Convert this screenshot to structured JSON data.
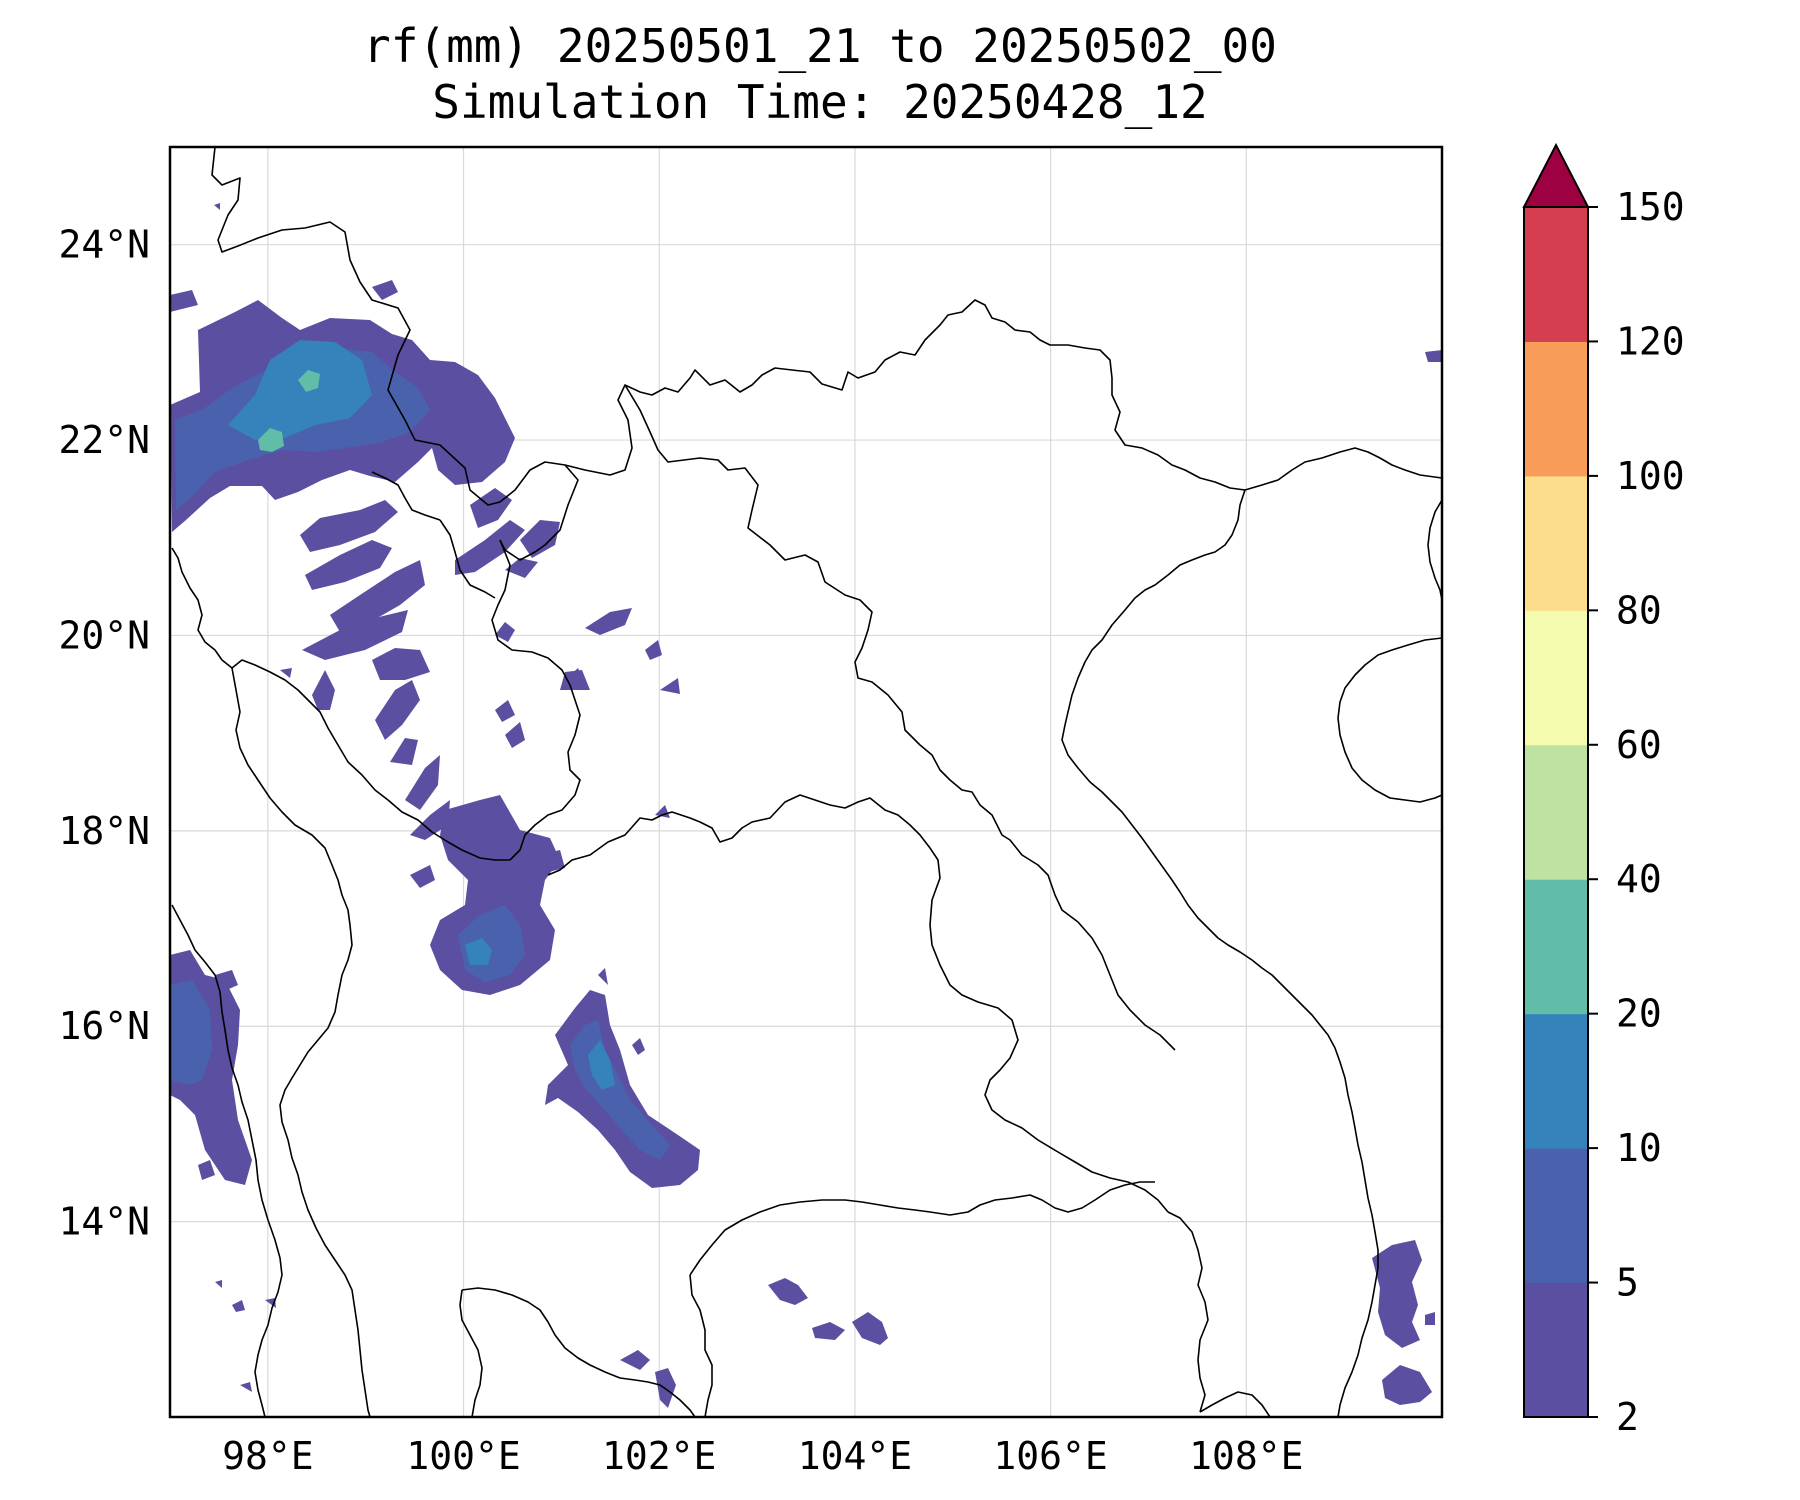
{
  "title": "rf(mm) 20250501_21 to 20250502_00",
  "subtitle": "Simulation Time: 20250428_12",
  "map": {
    "lon_range": [
      97.0,
      110.0
    ],
    "lat_range": [
      12.0,
      25.0
    ],
    "lon_ticks": [
      98,
      100,
      102,
      104,
      106,
      108
    ],
    "lon_tick_labels": [
      "98°E",
      "100°E",
      "102°E",
      "104°E",
      "106°E",
      "108°E"
    ],
    "lat_ticks": [
      14,
      16,
      18,
      20,
      22,
      24
    ],
    "lat_tick_labels": [
      "14°N",
      "16°N",
      "18°N",
      "20°N",
      "22°N",
      "24°N"
    ],
    "gridlines": true
  },
  "colorbar": {
    "levels": [
      2,
      5,
      10,
      20,
      40,
      60,
      80,
      100,
      120,
      150
    ],
    "level_labels": [
      "2",
      "5",
      "10",
      "20",
      "40",
      "60",
      "80",
      "100",
      "120",
      "150"
    ],
    "colors": [
      "#5a4fa0",
      "#4a62ae",
      "#3682ba",
      "#62bda8",
      "#bde2a2",
      "#f4fbaf",
      "#fcdd8c",
      "#f89d59",
      "#d53e4f"
    ],
    "extend_color": "#9e0142",
    "extend": "max"
  },
  "colors": {
    "frame": "#000000",
    "grid": "#d9d9d9",
    "border": "#000000"
  }
}
